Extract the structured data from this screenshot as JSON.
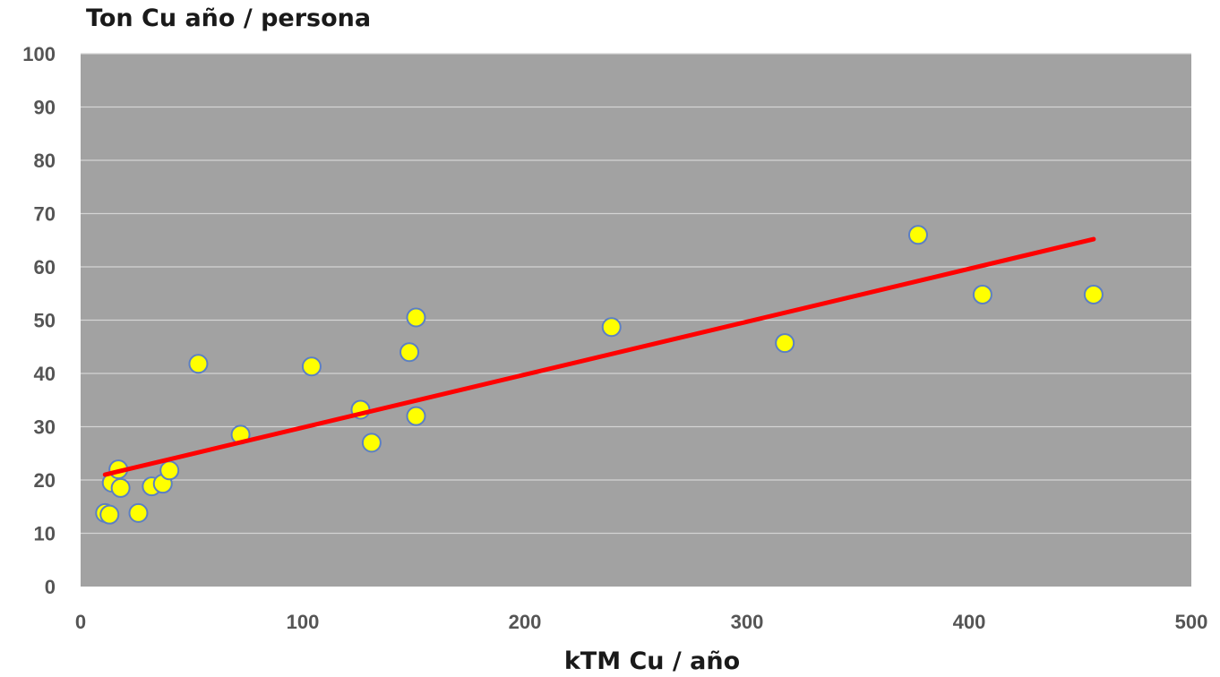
{
  "chart_data": {
    "type": "scatter",
    "ylabel": "Ton Cu año / persona",
    "xlabel": "kTM Cu / año",
    "xlim": [
      0,
      500
    ],
    "ylim": [
      0,
      100
    ],
    "x_ticks": [
      0,
      100,
      200,
      300,
      400,
      500
    ],
    "y_ticks": [
      0,
      10,
      20,
      30,
      40,
      50,
      60,
      70,
      80,
      90,
      100
    ],
    "grid": "horizontal",
    "legend": "none",
    "colors": {
      "plot_background": "#a2a2a2",
      "gridline": "#d4d4d4",
      "marker_fill": "#ffff00",
      "marker_edge": "#5b7fc4",
      "trendline": "#ff0000"
    },
    "series": [
      {
        "points": [
          {
            "x": 11,
            "y": 13.8
          },
          {
            "x": 13,
            "y": 13.5
          },
          {
            "x": 14,
            "y": 19.5
          },
          {
            "x": 17,
            "y": 22
          },
          {
            "x": 18,
            "y": 18.5
          },
          {
            "x": 26,
            "y": 13.8
          },
          {
            "x": 32,
            "y": 18.8
          },
          {
            "x": 37,
            "y": 19.3
          },
          {
            "x": 40,
            "y": 21.8
          },
          {
            "x": 53,
            "y": 41.8
          },
          {
            "x": 72,
            "y": 28.5
          },
          {
            "x": 104,
            "y": 41.3
          },
          {
            "x": 126,
            "y": 33.2
          },
          {
            "x": 131,
            "y": 27
          },
          {
            "x": 148,
            "y": 44
          },
          {
            "x": 151,
            "y": 32
          },
          {
            "x": 151,
            "y": 50.5
          },
          {
            "x": 239,
            "y": 48.7
          },
          {
            "x": 317,
            "y": 45.7
          },
          {
            "x": 377,
            "y": 66
          },
          {
            "x": 406,
            "y": 54.8
          },
          {
            "x": 456,
            "y": 54.8
          }
        ]
      }
    ],
    "trendline": {
      "x": [
        11,
        456
      ],
      "y": [
        21,
        65.2
      ]
    }
  }
}
